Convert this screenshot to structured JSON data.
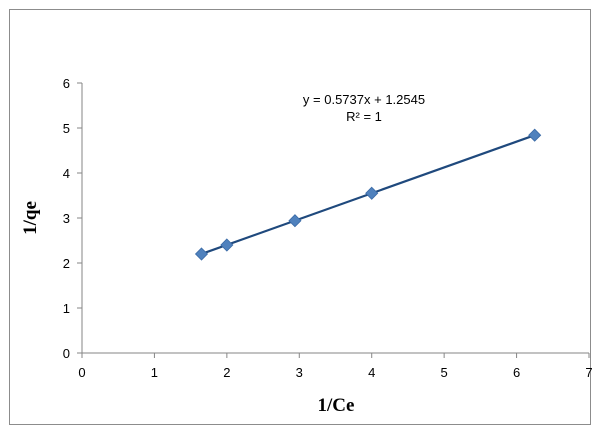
{
  "chart_data": {
    "type": "scatter",
    "title": "",
    "xlabel": "1/Ce",
    "ylabel": "1/qe",
    "xlim": [
      0,
      7
    ],
    "ylim": [
      0,
      6
    ],
    "xticks": [
      "0",
      "1",
      "2",
      "3",
      "4",
      "5",
      "6",
      "7"
    ],
    "yticks": [
      "0",
      "1",
      "2",
      "3",
      "4",
      "5",
      "6"
    ],
    "grid": false,
    "marker_color": "#4f81bd",
    "line_color": "#1f497d",
    "points": [
      {
        "x": 1.65,
        "y": 2.2
      },
      {
        "x": 2.0,
        "y": 2.4
      },
      {
        "x": 2.94,
        "y": 2.94
      },
      {
        "x": 4.0,
        "y": 3.55
      },
      {
        "x": 6.25,
        "y": 4.84
      }
    ],
    "trendline": {
      "slope": 0.5737,
      "intercept": 1.2545,
      "x_range": [
        1.65,
        6.25
      ],
      "equation": "y = 0.5737x + 1.2545",
      "r_squared": "R² = 1"
    }
  }
}
